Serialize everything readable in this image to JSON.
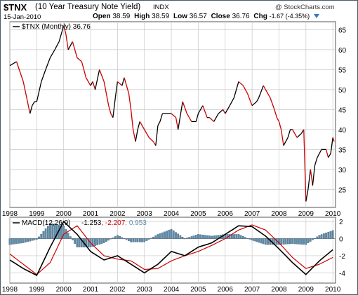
{
  "header": {
    "symbol": "$TNX",
    "name": "(10 Year Treasury Note Yield)",
    "exchange": "INDX",
    "date": "15-Jan-2010",
    "watermark": "@ StockCharts.com",
    "open_label": "Open",
    "open": "38.59",
    "high_label": "High",
    "high": "38.59",
    "low_label": "Low",
    "low": "36.57",
    "close_label": "Close",
    "close": "36.76",
    "chg_label": "Chg",
    "chg": "-1.67 (-4.35%)",
    "arrow_icon": "down-triangle-icon"
  },
  "chart_data": [
    {
      "type": "line",
      "title": "",
      "legend_label": "$TNX (Monthly) 36.76",
      "legend_position": "top-left",
      "grid": true,
      "x_unit": "year",
      "xlim": [
        1998.0,
        2010.1
      ],
      "ylim": [
        20.5,
        67
      ],
      "y_ticks": [
        25,
        30,
        35,
        40,
        45,
        50,
        55,
        60,
        65
      ],
      "x_ticks": [
        "1998",
        "1999",
        "2000",
        "2001",
        "2002",
        "2003",
        "2004",
        "2005",
        "2006",
        "2007",
        "2008",
        "2009",
        "2010"
      ],
      "colors": {
        "up": "#000000",
        "down": "#cc0000"
      },
      "x": [
        1998.0,
        1998.25,
        1998.5,
        1998.75,
        1998.83,
        1998.92,
        1999.0,
        1999.17,
        1999.33,
        1999.5,
        1999.67,
        1999.83,
        2000.0,
        2000.08,
        2000.17,
        2000.33,
        2000.5,
        2000.67,
        2000.83,
        2001.0,
        2001.08,
        2001.17,
        2001.33,
        2001.5,
        2001.67,
        2001.75,
        2001.83,
        2001.92,
        2002.0,
        2002.17,
        2002.25,
        2002.42,
        2002.5,
        2002.58,
        2002.67,
        2002.75,
        2002.83,
        2003.0,
        2003.17,
        2003.33,
        2003.42,
        2003.5,
        2003.58,
        2003.67,
        2003.83,
        2004.0,
        2004.17,
        2004.25,
        2004.42,
        2004.58,
        2004.75,
        2004.92,
        2005.0,
        2005.17,
        2005.33,
        2005.42,
        2005.58,
        2005.75,
        2005.92,
        2006.0,
        2006.17,
        2006.33,
        2006.5,
        2006.67,
        2006.83,
        2007.0,
        2007.17,
        2007.25,
        2007.42,
        2007.5,
        2007.67,
        2007.83,
        2007.92,
        2008.0,
        2008.08,
        2008.17,
        2008.33,
        2008.42,
        2008.5,
        2008.67,
        2008.83,
        2008.92,
        2009.0,
        2009.08,
        2009.17,
        2009.25,
        2009.33,
        2009.42,
        2009.58,
        2009.75,
        2009.83,
        2009.92,
        2010.0,
        2010.05
      ],
      "y": [
        56,
        57,
        52,
        44,
        46,
        47,
        47,
        52,
        55,
        58,
        60,
        62,
        66,
        64,
        60,
        62,
        58,
        57,
        53,
        51,
        52,
        50,
        55,
        52,
        46,
        44,
        43,
        48,
        52,
        51,
        53,
        49,
        45,
        40,
        37,
        40,
        42,
        40,
        38,
        37,
        36,
        41,
        42,
        44,
        44,
        44,
        43,
        40,
        47,
        44,
        42,
        42,
        44,
        46,
        43,
        43,
        42,
        44,
        45,
        44,
        46,
        48,
        52,
        51,
        49,
        46,
        47,
        48,
        51,
        50,
        48,
        45,
        43,
        42,
        40,
        36,
        38,
        40,
        40,
        38,
        39,
        40,
        22,
        25,
        30,
        26,
        31,
        33,
        35,
        35,
        33,
        34,
        38,
        37
      ]
    },
    {
      "type": "line",
      "title": "",
      "legend_label": "MACD(12,26,9)",
      "values_label": "-1.253, -2.207, 0.953",
      "legend_position": "top-left",
      "grid": true,
      "x_unit": "year",
      "xlim": [
        1998.0,
        2010.1
      ],
      "ylim": [
        -5.2,
        2.5
      ],
      "y_ticks": [
        2,
        0,
        -2,
        -4
      ],
      "x_ticks": [
        "1998",
        "1999",
        "2000",
        "2001",
        "2002",
        "2003",
        "2004",
        "2005",
        "2006",
        "2007",
        "2008",
        "2009",
        "2010"
      ],
      "x": [
        1998.0,
        1998.5,
        1999.0,
        1999.5,
        2000.0,
        2000.5,
        2001.0,
        2001.5,
        2002.0,
        2002.5,
        2003.0,
        2003.5,
        2004.0,
        2004.5,
        2005.0,
        2005.5,
        2006.0,
        2006.5,
        2007.0,
        2007.5,
        2008.0,
        2008.5,
        2009.0,
        2009.5,
        2010.0
      ],
      "series": [
        {
          "name": "MACD",
          "values": [
            -2.5,
            -3.5,
            -4.3,
            -1.0,
            2.0,
            0.5,
            -1.5,
            -2.5,
            -2.0,
            -3.0,
            -4.0,
            -3.0,
            -1.5,
            -2.0,
            -1.0,
            -0.5,
            0.5,
            1.5,
            1.4,
            0.3,
            -1.2,
            -2.8,
            -4.2,
            -2.6,
            -1.3
          ],
          "color": "#000000"
        },
        {
          "name": "Signal",
          "values": [
            -1.8,
            -3.0,
            -4.2,
            -2.8,
            0.5,
            1.5,
            -0.5,
            -2.0,
            -2.4,
            -2.6,
            -3.6,
            -3.5,
            -2.6,
            -2.0,
            -1.5,
            -0.8,
            0.0,
            1.0,
            1.6,
            1.0,
            -0.5,
            -2.2,
            -3.5,
            -3.0,
            -2.2
          ],
          "color": "#cc0000"
        },
        {
          "name": "Histogram",
          "values": [
            -0.7,
            -0.5,
            -0.1,
            1.8,
            1.5,
            -1.0,
            -1.0,
            -0.5,
            0.4,
            -0.4,
            -0.4,
            0.5,
            1.1,
            0.0,
            0.5,
            0.3,
            0.5,
            0.5,
            -0.2,
            -0.7,
            -0.7,
            -0.6,
            -0.7,
            0.4,
            0.95
          ],
          "color": "#5f8caa"
        }
      ]
    }
  ]
}
